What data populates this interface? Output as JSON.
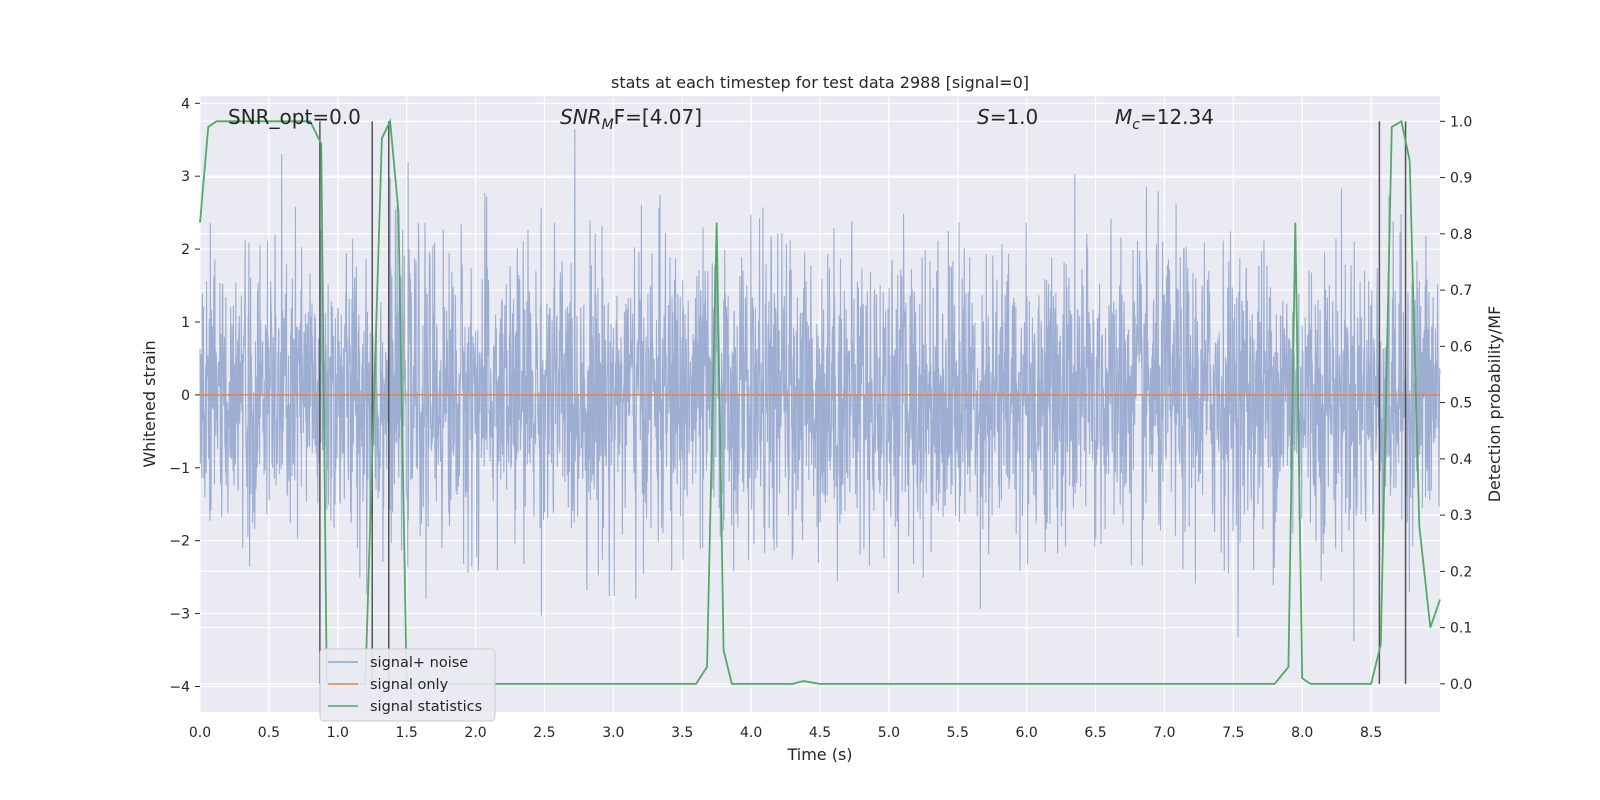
{
  "chart_data": {
    "type": "line",
    "title": "stats at each timestep for test data 2988 [signal=0]",
    "xlabel": "Time (s)",
    "ylabel": "Whitened strain",
    "y2label": "Detection probability/MF",
    "xlim": [
      0.0,
      9.0
    ],
    "ylim": [
      -4.35,
      4.1
    ],
    "y2lim": [
      -0.05,
      1.045
    ],
    "xticks": [
      "0.0",
      "0.5",
      "1.0",
      "1.5",
      "2.0",
      "2.5",
      "3.0",
      "3.5",
      "4.0",
      "4.5",
      "5.0",
      "5.5",
      "6.0",
      "6.5",
      "7.0",
      "7.5",
      "8.0",
      "8.5"
    ],
    "yticks": [
      "4",
      "3",
      "2",
      "1",
      "0",
      "−1",
      "−2",
      "−3",
      "−4"
    ],
    "y2ticks": [
      "1.0",
      "0.9",
      "0.8",
      "0.7",
      "0.6",
      "0.5",
      "0.4",
      "0.3",
      "0.2",
      "0.1",
      "0.0"
    ],
    "grid": true,
    "legend_position": "lower-left",
    "annotations": {
      "snr_opt": "SNR_opt=0.0",
      "snr_mf_sym": "SNR",
      "snr_mf_sub": "M",
      "snr_mf_rest": "F=[4.07]",
      "s_sym": "S",
      "s_rest": "=1.0",
      "mc_sym": "M",
      "mc_sub": "c",
      "mc_rest": "=12.34"
    },
    "series": [
      {
        "name": "signal+ noise",
        "color": "#8fa3cc",
        "description_range": [
          -4.0,
          3.65
        ],
        "noise_std": 1.0
      },
      {
        "name": "signal only",
        "color": "#dd8452",
        "x": [
          0.0,
          9.0
        ],
        "y": [
          0.0,
          0.0
        ]
      },
      {
        "name": "signal statistics",
        "color": "#55a868",
        "x": [
          0.0,
          0.06,
          0.12,
          0.8,
          0.88,
          0.92,
          1.0,
          1.2,
          1.32,
          1.38,
          1.44,
          1.5,
          1.56,
          3.6,
          3.68,
          3.75,
          3.8,
          3.86,
          4.3,
          4.38,
          4.5,
          7.8,
          7.9,
          7.95,
          8.0,
          8.06,
          8.5,
          8.57,
          8.65,
          8.72,
          8.78,
          8.85,
          8.93,
          9.0
        ],
        "y": [
          0.82,
          0.99,
          1.0,
          1.0,
          0.96,
          0.0,
          0.0,
          0.0,
          0.97,
          1.0,
          0.84,
          0.0,
          0.0,
          0.0,
          0.03,
          0.82,
          0.06,
          0.0,
          0.0,
          0.005,
          0.0,
          0.0,
          0.03,
          0.82,
          0.01,
          0.0,
          0.0,
          0.07,
          0.99,
          1.0,
          0.93,
          0.28,
          0.1,
          0.15
        ]
      }
    ],
    "vertical_markers_x": [
      0.87,
      1.25,
      1.37,
      8.56,
      8.75
    ]
  }
}
